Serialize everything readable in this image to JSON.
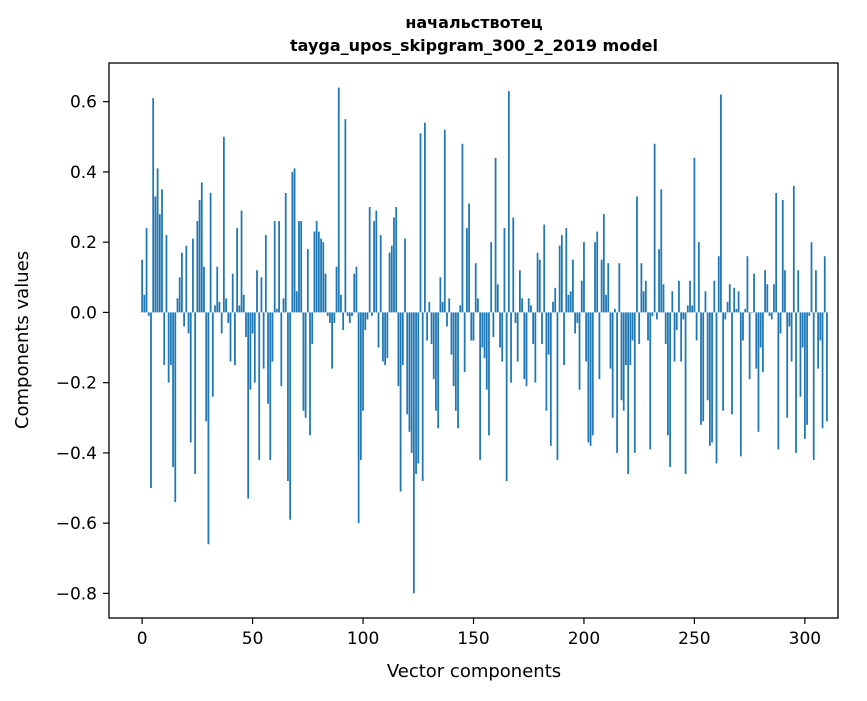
{
  "chart_data": {
    "type": "bar",
    "title_line1": "начальствотец",
    "title_line2": "tayga_upos_skipgram_300_2_2019 model",
    "xlabel": "Vector components",
    "ylabel": "Components values",
    "xlim": [
      -15,
      315
    ],
    "ylim": [
      -0.87,
      0.71
    ],
    "xticks": [
      0,
      50,
      100,
      150,
      200,
      250,
      300
    ],
    "yticks": [
      -0.8,
      -0.6,
      -0.4,
      -0.2,
      0.0,
      0.2,
      0.4,
      0.6
    ],
    "ytick_labels": [
      "−0.8",
      "−0.6",
      "−0.4",
      "−0.2",
      "0.0",
      "0.2",
      "0.4",
      "0.6"
    ],
    "bar_color": "#1f77b4",
    "grid": false,
    "values": [
      0.15,
      0.05,
      0.24,
      -0.01,
      -0.5,
      0.61,
      0.33,
      0.41,
      0.28,
      0.35,
      -0.15,
      0.22,
      -0.2,
      -0.15,
      -0.44,
      -0.54,
      0.04,
      0.1,
      0.17,
      -0.04,
      0.19,
      -0.06,
      -0.37,
      0.21,
      -0.46,
      0.26,
      0.32,
      0.37,
      0.13,
      -0.31,
      -0.66,
      0.34,
      -0.24,
      0.02,
      0.13,
      0.03,
      -0.06,
      0.5,
      0.04,
      -0.03,
      -0.14,
      0.11,
      -0.15,
      0.24,
      0.02,
      0.29,
      0.05,
      -0.07,
      -0.53,
      -0.22,
      -0.06,
      -0.2,
      0.12,
      -0.42,
      0.1,
      -0.16,
      0.22,
      -0.26,
      -0.42,
      -0.14,
      0.26,
      0.01,
      0.26,
      -0.21,
      0.04,
      0.34,
      -0.48,
      -0.59,
      0.4,
      0.41,
      0.06,
      0.26,
      0.26,
      -0.28,
      -0.3,
      0.18,
      -0.35,
      -0.09,
      0.23,
      0.26,
      0.23,
      0.21,
      0.2,
      0.11,
      -0.01,
      -0.03,
      -0.16,
      -0.03,
      0.13,
      0.64,
      0.05,
      -0.05,
      0.55,
      -0.01,
      -0.03,
      -0.01,
      0.11,
      0.13,
      -0.6,
      -0.42,
      -0.28,
      -0.05,
      -0.02,
      0.3,
      -0.01,
      0.26,
      0.29,
      -0.1,
      0.22,
      -0.14,
      -0.15,
      -0.13,
      0.17,
      0.19,
      0.27,
      0.3,
      -0.21,
      -0.51,
      -0.15,
      0.21,
      -0.29,
      -0.34,
      -0.4,
      -0.8,
      -0.46,
      -0.43,
      0.51,
      -0.48,
      0.54,
      -0.08,
      0.03,
      -0.09,
      -0.19,
      -0.28,
      -0.33,
      0.1,
      0.03,
      0.52,
      -0.04,
      0.04,
      -0.12,
      -0.21,
      -0.28,
      -0.33,
      0.02,
      0.48,
      -0.17,
      0.24,
      0.31,
      -0.08,
      -0.08,
      0.14,
      0.04,
      -0.42,
      -0.1,
      -0.13,
      -0.22,
      -0.35,
      0.2,
      -0.07,
      0.44,
      0.08,
      -0.1,
      -0.14,
      0.24,
      -0.48,
      0.63,
      -0.2,
      0.27,
      -0.03,
      -0.14,
      0.12,
      0.04,
      -0.19,
      -0.21,
      0.04,
      0.02,
      -0.09,
      -0.2,
      0.17,
      0.15,
      -0.09,
      0.25,
      -0.28,
      -0.12,
      -0.38,
      0.03,
      0.07,
      -0.42,
      0.19,
      0.22,
      -0.15,
      0.24,
      0.05,
      0.06,
      0.15,
      -0.06,
      -0.03,
      -0.22,
      0.09,
      0.2,
      -0.14,
      -0.37,
      -0.38,
      -0.35,
      0.2,
      0.23,
      -0.19,
      0.15,
      0.28,
      0.05,
      0.14,
      -0.16,
      -0.3,
      0.01,
      -0.4,
      0.14,
      -0.25,
      -0.28,
      -0.15,
      -0.46,
      -0.15,
      -0.08,
      -0.4,
      0.33,
      -0.09,
      0.14,
      0.06,
      0.09,
      -0.08,
      -0.39,
      -0.01,
      0.48,
      -0.02,
      0.18,
      0.35,
      0.08,
      -0.09,
      -0.35,
      -0.44,
      0.06,
      -0.14,
      -0.05,
      0.09,
      -0.14,
      -0.02,
      -0.46,
      0.02,
      0.09,
      0.02,
      0.44,
      -0.08,
      0.2,
      -0.32,
      -0.31,
      0.06,
      -0.25,
      -0.38,
      -0.37,
      0.09,
      -0.43,
      0.16,
      0.62,
      -0.28,
      -0.02,
      0.03,
      0.08,
      -0.29,
      0.07,
      0.01,
      0.06,
      -0.41,
      -0.08,
      0.01,
      0.16,
      -0.19,
      0.0,
      0.11,
      -0.16,
      -0.34,
      -0.1,
      -0.17,
      0.12,
      0.08,
      -0.01,
      -0.02,
      0.08,
      0.34,
      -0.39,
      -0.06,
      0.32,
      0.12,
      -0.3,
      -0.04,
      -0.14,
      0.36,
      -0.4,
      0.12,
      -0.24,
      -0.1,
      -0.36,
      -0.32,
      -0.01,
      0.2,
      -0.42,
      0.12,
      -0.16,
      -0.08,
      -0.33,
      0.16,
      -0.31
    ]
  }
}
